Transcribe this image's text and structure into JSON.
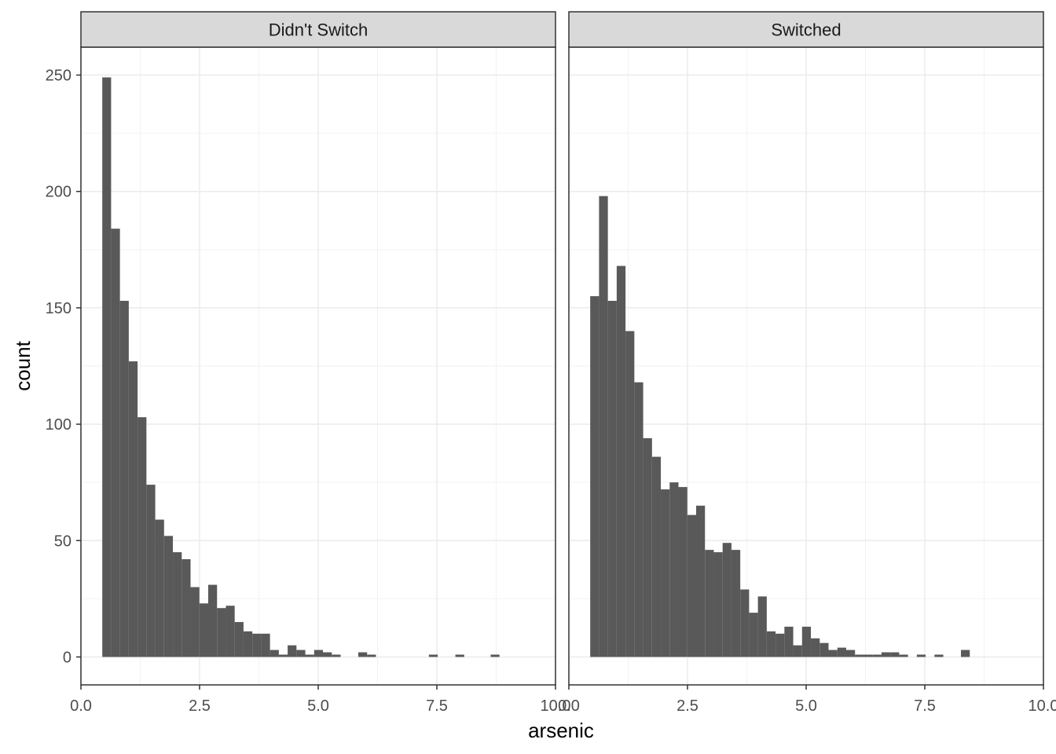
{
  "chart_data": {
    "type": "bar",
    "subtype": "histogram",
    "xlabel": "arsenic",
    "ylabel": "count",
    "xlim": [
      0,
      10
    ],
    "ylim": [
      -12,
      262
    ],
    "x_ticks": [
      0,
      2.5,
      5,
      7.5,
      10
    ],
    "x_tick_labels": [
      "0.0",
      "2.5",
      "5.0",
      "7.5",
      "10.0"
    ],
    "y_ticks": [
      0,
      50,
      100,
      150,
      200,
      250
    ],
    "y_tick_labels": [
      "0",
      "50",
      "100",
      "150",
      "200",
      "250"
    ],
    "grid": true,
    "bar_color": "#595959",
    "bin_width": 0.186,
    "first_bin_left": 0.45,
    "panels": [
      {
        "title": "Didn't Switch",
        "counts": [
          249,
          184,
          153,
          127,
          103,
          74,
          59,
          52,
          45,
          42,
          30,
          23,
          31,
          21,
          22,
          15,
          11,
          10,
          10,
          3,
          1,
          5,
          3,
          1,
          3,
          2,
          1,
          0,
          0,
          2,
          1,
          0,
          0,
          0,
          0,
          0,
          0,
          1,
          0,
          0,
          1,
          0,
          0,
          0,
          1,
          0,
          0,
          0,
          0,
          0,
          0,
          0,
          0,
          0,
          0,
          0,
          0,
          0,
          0,
          0,
          0,
          0,
          0,
          0,
          0,
          0,
          0,
          0,
          0,
          0,
          0,
          0,
          0
        ]
      },
      {
        "title": "Switched",
        "counts": [
          155,
          198,
          153,
          168,
          140,
          118,
          94,
          86,
          72,
          75,
          73,
          61,
          65,
          46,
          45,
          49,
          46,
          29,
          19,
          26,
          11,
          10,
          13,
          5,
          13,
          8,
          6,
          3,
          4,
          3,
          1,
          1,
          1,
          2,
          2,
          1,
          0,
          1,
          0,
          1,
          0,
          0,
          3,
          0,
          0,
          0,
          0,
          0,
          0,
          0,
          0,
          0,
          0,
          1,
          0,
          0,
          0,
          0,
          0,
          0,
          0,
          1,
          0,
          0,
          0,
          0,
          0,
          0,
          0,
          0,
          0,
          0,
          0
        ]
      }
    ]
  }
}
